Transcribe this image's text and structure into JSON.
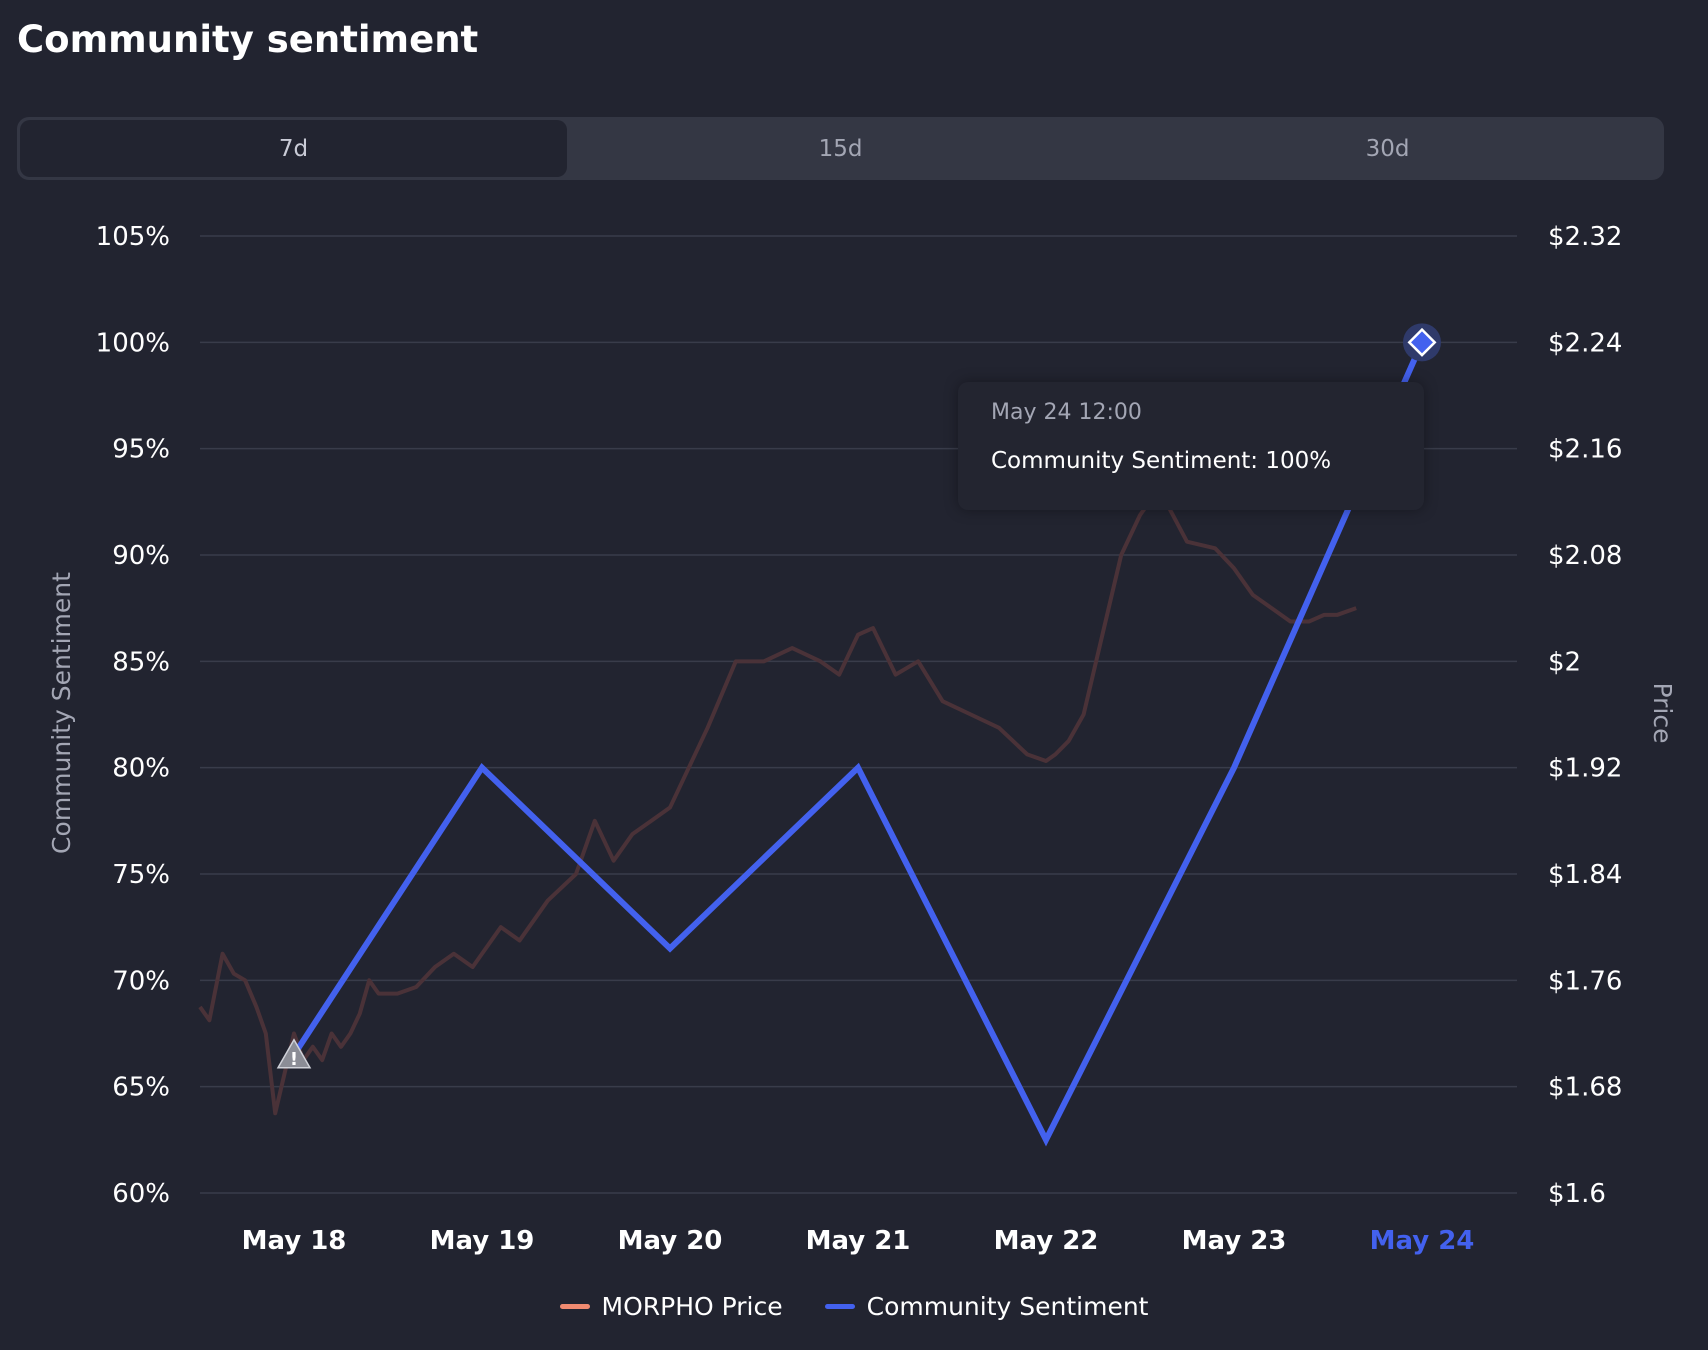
{
  "page": {
    "title": "Community sentiment"
  },
  "tabs": [
    {
      "label": "7d",
      "active": true
    },
    {
      "label": "15d",
      "active": false
    },
    {
      "label": "30d",
      "active": false
    }
  ],
  "tooltip": {
    "time": "May 24 12:00",
    "text": "Community Sentiment: 100%"
  },
  "legend": [
    {
      "label": "MORPHO Price",
      "color": "#f08a70"
    },
    {
      "label": "Community Sentiment",
      "color": "#4361ee"
    }
  ],
  "colors": {
    "sentiment": "#4361ee",
    "price_line": "#4a3238",
    "grid": "#393c4a",
    "highlight": "#4361ee",
    "warning_marker": "#8b8d96"
  },
  "chart_data": {
    "type": "line",
    "title": "",
    "x_categories": [
      "May 18",
      "May 19",
      "May 20",
      "May 21",
      "May 22",
      "May 23",
      "May 24"
    ],
    "highlighted_category": "May 24",
    "ylabel_left": "Community Sentiment",
    "ylabel_right": "Price",
    "ylim_left": [
      60,
      105
    ],
    "ylim_right": [
      1.6,
      2.32
    ],
    "left_ticks": [
      "105%",
      "100%",
      "95%",
      "90%",
      "85%",
      "80%",
      "75%",
      "70%",
      "65%",
      "60%"
    ],
    "right_ticks": [
      "$2.32",
      "$2.24",
      "$2.16",
      "$2.08",
      "$2",
      "$1.92",
      "$1.84",
      "$1.76",
      "$1.68",
      "$1.6"
    ],
    "grid": true,
    "legend_position": "bottom-center",
    "series": [
      {
        "name": "Community Sentiment",
        "axis": "left",
        "x": [
          "May 18",
          "May 19",
          "May 20",
          "May 21",
          "May 22",
          "May 23",
          "May 24"
        ],
        "values": [
          66.5,
          80,
          71.5,
          80,
          62.5,
          80,
          100
        ]
      },
      {
        "name": "MORPHO Price",
        "axis": "right",
        "x_index": [
          -0.5,
          -0.45,
          -0.38,
          -0.32,
          -0.26,
          -0.2,
          -0.15,
          -0.1,
          -0.05,
          0,
          0.05,
          0.1,
          0.15,
          0.2,
          0.25,
          0.3,
          0.35,
          0.4,
          0.45,
          0.55,
          0.65,
          0.75,
          0.85,
          0.95,
          1.0,
          1.1,
          1.2,
          1.35,
          1.5,
          1.6,
          1.7,
          1.8,
          1.9,
          2.0,
          2.1,
          2.2,
          2.35,
          2.5,
          2.65,
          2.8,
          2.9,
          3.0,
          3.08,
          3.2,
          3.32,
          3.45,
          3.6,
          3.75,
          3.9,
          4.0,
          4.05,
          4.12,
          4.2,
          4.3,
          4.4,
          4.5,
          4.6,
          4.75,
          4.9,
          5.0,
          5.1,
          5.2,
          5.3,
          5.4,
          5.48,
          5.55,
          5.65
        ],
        "values": [
          1.74,
          1.73,
          1.78,
          1.765,
          1.76,
          1.74,
          1.72,
          1.66,
          1.69,
          1.72,
          1.7,
          1.71,
          1.7,
          1.72,
          1.71,
          1.72,
          1.735,
          1.76,
          1.75,
          1.75,
          1.755,
          1.77,
          1.78,
          1.77,
          1.78,
          1.8,
          1.79,
          1.82,
          1.84,
          1.88,
          1.85,
          1.87,
          1.88,
          1.89,
          1.92,
          1.95,
          2.0,
          2.0,
          2.01,
          2.0,
          1.99,
          2.02,
          2.025,
          1.99,
          2.0,
          1.97,
          1.96,
          1.95,
          1.93,
          1.925,
          1.93,
          1.94,
          1.96,
          2.02,
          2.08,
          2.11,
          2.13,
          2.09,
          2.085,
          2.07,
          2.05,
          2.04,
          2.03,
          2.03,
          2.035,
          2.035,
          2.04
        ]
      }
    ]
  }
}
